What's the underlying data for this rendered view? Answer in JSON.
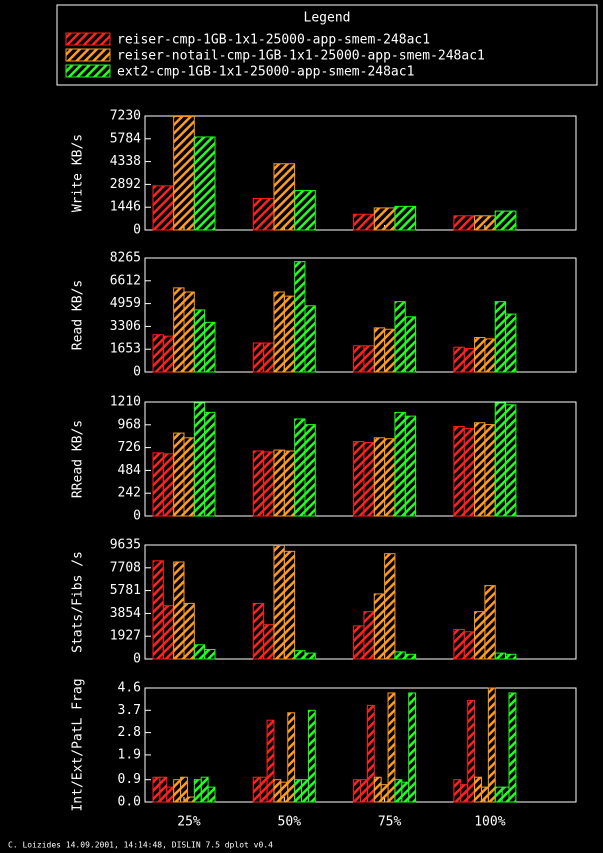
{
  "legend": {
    "title": "Legend",
    "series": [
      {
        "name": "reiser-cmp-1GB-1x1-25000-app-smem-248ac1",
        "color": "#ff2020"
      },
      {
        "name": "reiser-notail-cmp-1GB-1x1-25000-app-smem-248ac1",
        "color": "#ff9a20"
      },
      {
        "name": "ext2-cmp-1GB-1x1-25000-app-smem-248ac1",
        "color": "#20ff20"
      }
    ]
  },
  "categories": [
    "25%",
    "50%",
    "75%",
    "100%"
  ],
  "footer": "C. Loizides 14.09.2001, 14:14:48, DISLIN 7.5 dplot v0.4",
  "chart_data": [
    {
      "type": "bar",
      "ylabel": "Write KB/s",
      "ylim": [
        0,
        7230
      ],
      "yticks": [
        0,
        1446,
        2892,
        4338,
        5784,
        7230
      ],
      "series": [
        {
          "values": [
            [
              2800
            ],
            [
              2000
            ],
            [
              1000
            ],
            [
              900
            ]
          ]
        },
        {
          "values": [
            [
              7200
            ],
            [
              4200
            ],
            [
              1400
            ],
            [
              900
            ]
          ]
        },
        {
          "values": [
            [
              5900
            ],
            [
              2500
            ],
            [
              1500
            ],
            [
              1200
            ]
          ]
        }
      ]
    },
    {
      "type": "bar",
      "ylabel": "Read KB/s",
      "ylim": [
        0,
        8265
      ],
      "yticks": [
        0,
        1653,
        3306,
        4959,
        6612,
        8265
      ],
      "series": [
        {
          "values": [
            [
              2700,
              2600
            ],
            [
              2100,
              2100
            ],
            [
              1900,
              1900
            ],
            [
              1800,
              1700
            ]
          ]
        },
        {
          "values": [
            [
              6100,
              5800
            ],
            [
              5800,
              5500
            ],
            [
              3200,
              3100
            ],
            [
              2500,
              2400
            ]
          ]
        },
        {
          "values": [
            [
              4500,
              3600
            ],
            [
              8000,
              4800
            ],
            [
              5100,
              4000
            ],
            [
              5100,
              4200
            ]
          ]
        }
      ]
    },
    {
      "type": "bar",
      "ylabel": "RRead KB/s",
      "ylim": [
        0,
        1210
      ],
      "yticks": [
        0,
        242,
        484,
        726,
        968,
        1210
      ],
      "series": [
        {
          "values": [
            [
              670,
              660
            ],
            [
              690,
              680
            ],
            [
              790,
              780
            ],
            [
              950,
              930
            ]
          ]
        },
        {
          "values": [
            [
              880,
              830
            ],
            [
              700,
              690
            ],
            [
              830,
              820
            ],
            [
              990,
              970
            ]
          ]
        },
        {
          "values": [
            [
              1200,
              1100
            ],
            [
              1030,
              970
            ],
            [
              1100,
              1060
            ],
            [
              1200,
              1180
            ]
          ]
        }
      ]
    },
    {
      "type": "bar",
      "ylabel": "Stats/Fibs /s",
      "ylim": [
        0,
        9635
      ],
      "yticks": [
        0,
        1927,
        3854,
        5781,
        7708,
        9635
      ],
      "series": [
        {
          "values": [
            [
              8300,
              4500
            ],
            [
              4700,
              2900
            ],
            [
              2800,
              4000
            ],
            [
              2500,
              2300
            ]
          ]
        },
        {
          "values": [
            [
              8200,
              4700
            ],
            [
              9600,
              9100
            ],
            [
              5500,
              8900
            ],
            [
              4000,
              6200
            ]
          ]
        },
        {
          "values": [
            [
              1200,
              800
            ],
            [
              700,
              500
            ],
            [
              600,
              400
            ],
            [
              500,
              400
            ]
          ]
        }
      ]
    },
    {
      "type": "bar",
      "ylabel": "Int/Ext/PatL Frag",
      "ylim": [
        0,
        4.6
      ],
      "yticks": [
        {
          "value": 0,
          "label": "0.0"
        },
        0.9,
        1.9,
        2.8,
        3.7,
        4.6
      ],
      "series": [
        {
          "values": [
            [
              1.0,
              1.0,
              0.6
            ],
            [
              1.0,
              1.0,
              3.3
            ],
            [
              0.9,
              0.9,
              3.9
            ],
            [
              0.9,
              0.7,
              4.1
            ]
          ]
        },
        {
          "values": [
            [
              0.9,
              1.0,
              0.2
            ],
            [
              0.9,
              0.8,
              3.6
            ],
            [
              1.0,
              0.7,
              4.4
            ],
            [
              1.0,
              0.6,
              4.6
            ]
          ]
        },
        {
          "values": [
            [
              0.9,
              1.0,
              0.6
            ],
            [
              0.9,
              0.9,
              3.7
            ],
            [
              0.9,
              0.8,
              4.4
            ],
            [
              0.6,
              0.6,
              4.4
            ]
          ]
        }
      ]
    }
  ]
}
